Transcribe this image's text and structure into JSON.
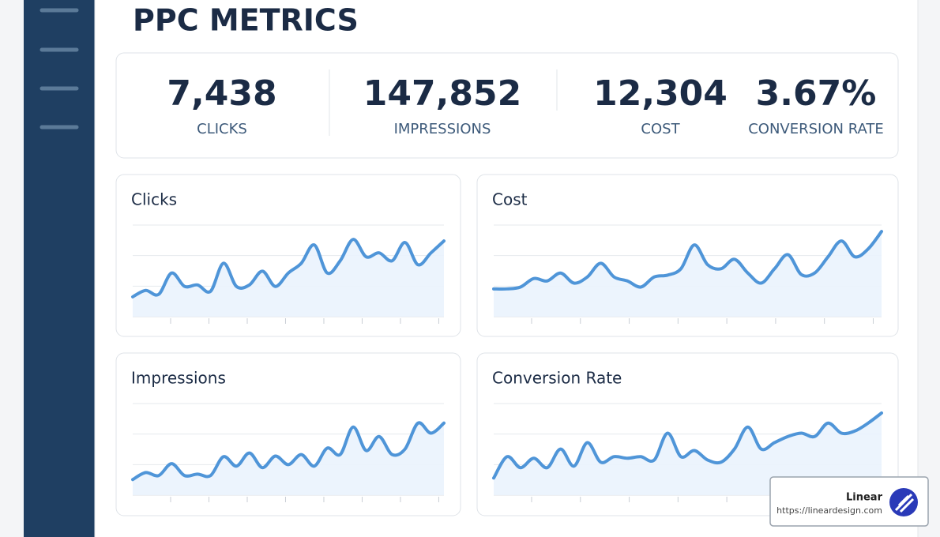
{
  "header": {
    "title": "PPC METRICS"
  },
  "kpis": [
    {
      "value": "7,438",
      "label": "CLICKS"
    },
    {
      "value": "147,852",
      "label": "IMPRESSIONS"
    },
    {
      "value": "12,304",
      "label": "COST"
    },
    {
      "value": "3.67%",
      "label": "CONVERSION RATE"
    }
  ],
  "charts": [
    {
      "type": "line",
      "title": "Clicks",
      "color": "#4f95d8",
      "grid": true,
      "ylim": [
        0,
        3
      ],
      "yticks": [
        1,
        2,
        3
      ],
      "values": [
        0.65,
        0.86,
        0.73,
        1.43,
        0.99,
        1.04,
        0.83,
        1.75,
        0.99,
        1.04,
        1.49,
        0.99,
        1.43,
        1.75,
        2.35,
        1.43,
        1.83,
        2.53,
        1.96,
        2.09,
        1.83,
        2.43,
        1.7,
        2.09,
        2.48
      ]
    },
    {
      "type": "line",
      "title": "Cost",
      "color": "#4f95d8",
      "grid": true,
      "ylim": [
        0,
        3
      ],
      "yticks": [
        1,
        2,
        3
      ],
      "values": [
        0.91,
        0.91,
        0.97,
        1.25,
        1.17,
        1.43,
        1.1,
        1.3,
        1.75,
        1.3,
        1.17,
        0.97,
        1.3,
        1.36,
        1.57,
        2.35,
        1.7,
        1.57,
        1.88,
        1.43,
        1.1,
        1.57,
        2.03,
        1.38,
        1.43,
        1.96,
        2.48,
        1.96,
        2.22,
        2.79
      ]
    },
    {
      "type": "line",
      "title": "Impressions",
      "color": "#4f95d8",
      "grid": true,
      "ylim": [
        0,
        3
      ],
      "yticks": [
        1,
        2,
        3
      ],
      "values": [
        0.51,
        0.74,
        0.64,
        1.03,
        0.64,
        0.69,
        0.64,
        1.26,
        0.95,
        1.38,
        0.9,
        1.28,
        1.0,
        1.33,
        0.95,
        1.54,
        1.33,
        2.23,
        1.46,
        1.92,
        1.33,
        1.51,
        2.36,
        2.03,
        2.36
      ]
    },
    {
      "type": "line",
      "title": "Conversion Rate",
      "color": "#4f95d8",
      "grid": true,
      "ylim": [
        0,
        3
      ],
      "yticks": [
        1,
        2,
        3
      ],
      "values": [
        0.56,
        1.26,
        0.9,
        1.21,
        0.9,
        1.51,
        0.95,
        1.72,
        1.08,
        1.26,
        1.21,
        1.26,
        1.15,
        2.03,
        1.26,
        1.46,
        1.15,
        1.08,
        1.51,
        2.23,
        1.51,
        1.72,
        1.92,
        2.03,
        1.92,
        2.36,
        2.03,
        2.1,
        2.36,
        2.69
      ]
    }
  ],
  "badge": {
    "name": "Linear",
    "url": "https://lineardesign.com"
  }
}
